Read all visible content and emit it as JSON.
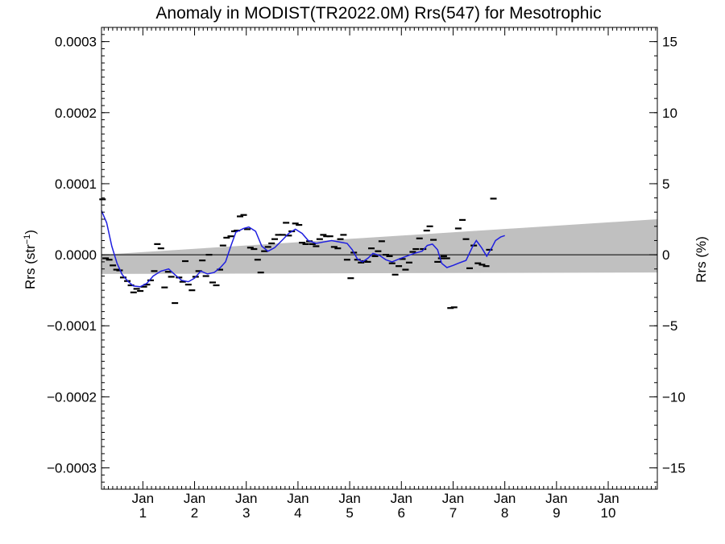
{
  "chart_data": {
    "type": "scatter",
    "title": "Anomaly in MODIST(TR2022.0M) Rrs(547) for Mesotrophic",
    "ylabel_left_base": "Rrs (str",
    "ylabel_left_sup": "−1",
    "ylabel_left_close": ")",
    "ylabel_right": "Rrs (%)",
    "xlim": [
      0.2,
      10.95
    ],
    "ylim_left": [
      -0.00033,
      0.00032
    ],
    "ylim_right": [
      -16.5,
      16.0
    ],
    "grid": false,
    "left_ticks": [
      {
        "value": 0.0003,
        "label": "0.0003"
      },
      {
        "value": 0.0002,
        "label": "0.0002"
      },
      {
        "value": 0.0001,
        "label": "0.0001"
      },
      {
        "value": 0.0,
        "label": "0.0000"
      },
      {
        "value": -0.0001,
        "label": "−0.0001"
      },
      {
        "value": -0.0002,
        "label": "−0.0002"
      },
      {
        "value": -0.0003,
        "label": "−0.0003"
      }
    ],
    "right_ticks": [
      {
        "value": 15,
        "label": "15"
      },
      {
        "value": 10,
        "label": "10"
      },
      {
        "value": 5,
        "label": "5"
      },
      {
        "value": 0,
        "label": "0"
      },
      {
        "value": -5,
        "label": "−5"
      },
      {
        "value": -10,
        "label": "−10"
      },
      {
        "value": -15,
        "label": "−15"
      }
    ],
    "x_ticks": [
      {
        "value": 1,
        "month": "Jan",
        "year": "1"
      },
      {
        "value": 2,
        "month": "Jan",
        "year": "2"
      },
      {
        "value": 3,
        "month": "Jan",
        "year": "3"
      },
      {
        "value": 4,
        "month": "Jan",
        "year": "4"
      },
      {
        "value": 5,
        "month": "Jan",
        "year": "5"
      },
      {
        "value": 6,
        "month": "Jan",
        "year": "6"
      },
      {
        "value": 7,
        "month": "Jan",
        "year": "7"
      },
      {
        "value": 8,
        "month": "Jan",
        "year": "8"
      },
      {
        "value": 9,
        "month": "Jan",
        "year": "9"
      },
      {
        "value": 10,
        "month": "Jan",
        "year": "10"
      }
    ],
    "band": {
      "color": "#c0c0c0",
      "upper": [
        [
          0.2,
          0.0
        ],
        [
          10.95,
          5e-05
        ]
      ],
      "lower": [
        [
          0.2,
          -2.7e-05
        ],
        [
          10.95,
          -2.5e-05
        ]
      ]
    },
    "zero_line": 0,
    "points": [
      [
        0.22,
        7.8e-05
      ],
      [
        0.28,
        -5e-06
      ],
      [
        0.35,
        -7e-06
      ],
      [
        0.42,
        -1.5e-05
      ],
      [
        0.49,
        -2.1e-05
      ],
      [
        0.55,
        -2.2e-05
      ],
      [
        0.62,
        -3.2e-05
      ],
      [
        0.7,
        -3.7e-05
      ],
      [
        0.77,
        -4.3e-05
      ],
      [
        0.82,
        -5.3e-05
      ],
      [
        0.88,
        -4.8e-05
      ],
      [
        0.95,
        -5.1e-05
      ],
      [
        1.02,
        -4.5e-05
      ],
      [
        1.08,
        -4.2e-05
      ],
      [
        1.15,
        -3.6e-05
      ],
      [
        1.22,
        -2.3e-05
      ],
      [
        1.28,
        1.5e-05
      ],
      [
        1.35,
        9e-06
      ],
      [
        1.42,
        -4.6e-05
      ],
      [
        1.49,
        -2.4e-05
      ],
      [
        1.55,
        -3.1e-05
      ],
      [
        1.62,
        -6.8e-05
      ],
      [
        1.7,
        -3.2e-05
      ],
      [
        1.77,
        -3.8e-05
      ],
      [
        1.82,
        -9e-06
      ],
      [
        1.88,
        -4.2e-05
      ],
      [
        1.95,
        -5e-05
      ],
      [
        2.02,
        -3.1e-05
      ],
      [
        2.08,
        -2.3e-05
      ],
      [
        2.15,
        -8e-06
      ],
      [
        2.22,
        -3e-05
      ],
      [
        2.28,
        0.0
      ],
      [
        2.35,
        -3.9e-05
      ],
      [
        2.42,
        -4.3e-05
      ],
      [
        2.49,
        -2.1e-05
      ],
      [
        2.55,
        1.3e-05
      ],
      [
        2.62,
        2.4e-05
      ],
      [
        2.7,
        2.6e-05
      ],
      [
        2.77,
        3.3e-05
      ],
      [
        2.82,
        3.4e-05
      ],
      [
        2.88,
        5.4e-05
      ],
      [
        2.95,
        5.6e-05
      ],
      [
        3.02,
        3.6e-05
      ],
      [
        3.08,
        1e-05
      ],
      [
        3.15,
        8e-06
      ],
      [
        3.22,
        -7e-06
      ],
      [
        3.28,
        -2.5e-05
      ],
      [
        3.35,
        5e-06
      ],
      [
        3.42,
        1.1e-05
      ],
      [
        3.49,
        1.6e-05
      ],
      [
        3.55,
        2.2e-05
      ],
      [
        3.62,
        2.8e-05
      ],
      [
        3.7,
        2.8e-05
      ],
      [
        3.77,
        4.5e-05
      ],
      [
        3.82,
        2.7e-05
      ],
      [
        3.88,
        3.3e-05
      ],
      [
        3.95,
        4.4e-05
      ],
      [
        4.02,
        4.2e-05
      ],
      [
        4.08,
        1.7e-05
      ],
      [
        4.15,
        1.5e-05
      ],
      [
        4.22,
        1.9e-05
      ],
      [
        4.28,
        1.5e-05
      ],
      [
        4.35,
        1.2e-05
      ],
      [
        4.42,
        2.2e-05
      ],
      [
        4.49,
        2.8e-05
      ],
      [
        4.55,
        2.6e-05
      ],
      [
        4.62,
        2.6e-05
      ],
      [
        4.7,
        1.1e-05
      ],
      [
        4.77,
        9e-06
      ],
      [
        4.82,
        2.2e-05
      ],
      [
        4.88,
        2.8e-05
      ],
      [
        4.95,
        -7e-06
      ],
      [
        5.02,
        -3.3e-05
      ],
      [
        5.08,
        3e-06
      ],
      [
        5.15,
        -7e-06
      ],
      [
        5.22,
        -1.1e-05
      ],
      [
        5.28,
        -9e-06
      ],
      [
        5.35,
        -1e-05
      ],
      [
        5.42,
        9e-06
      ],
      [
        5.49,
        -2e-06
      ],
      [
        5.55,
        5e-06
      ],
      [
        5.62,
        1.9e-05
      ],
      [
        5.7,
        0.0
      ],
      [
        5.77,
        -2e-06
      ],
      [
        5.82,
        -1.2e-05
      ],
      [
        5.88,
        -2.8e-05
      ],
      [
        5.95,
        -1.6e-05
      ],
      [
        6.02,
        -6e-06
      ],
      [
        6.08,
        -2.1e-05
      ],
      [
        6.15,
        -1.1e-05
      ],
      [
        6.22,
        4e-06
      ],
      [
        6.28,
        8e-06
      ],
      [
        6.35,
        2.3e-05
      ],
      [
        6.42,
        8e-06
      ],
      [
        6.49,
        3.4e-05
      ],
      [
        6.55,
        4e-05
      ],
      [
        6.62,
        2.1e-05
      ],
      [
        6.7,
        -1e-05
      ],
      [
        6.77,
        -5e-06
      ],
      [
        6.82,
        -2e-06
      ],
      [
        6.88,
        -5e-06
      ],
      [
        6.95,
        -7.5e-05
      ],
      [
        7.02,
        -7.4e-05
      ],
      [
        7.1,
        3.7e-05
      ],
      [
        7.18,
        4.9e-05
      ],
      [
        7.25,
        2.2e-05
      ],
      [
        7.32,
        -1.9e-05
      ],
      [
        7.4,
        1.3e-05
      ],
      [
        7.48,
        -1.2e-05
      ],
      [
        7.56,
        -1.4e-05
      ],
      [
        7.64,
        -1.6e-05
      ],
      [
        7.7,
        7e-06
      ],
      [
        7.78,
        7.9e-05
      ]
    ],
    "smooth_line": [
      [
        0.2,
        6.2e-05
      ],
      [
        0.3,
        4.5e-05
      ],
      [
        0.4,
        1.2e-05
      ],
      [
        0.5,
        -1.2e-05
      ],
      [
        0.6,
        -2.8e-05
      ],
      [
        0.72,
        -3.8e-05
      ],
      [
        0.82,
        -4.4e-05
      ],
      [
        0.95,
        -4.5e-05
      ],
      [
        1.08,
        -4e-05
      ],
      [
        1.2,
        -3e-05
      ],
      [
        1.35,
        -2.3e-05
      ],
      [
        1.5,
        -2e-05
      ],
      [
        1.62,
        -2.8e-05
      ],
      [
        1.75,
        -3.6e-05
      ],
      [
        1.88,
        -3.8e-05
      ],
      [
        2.0,
        -3.3e-05
      ],
      [
        2.12,
        -2.3e-05
      ],
      [
        2.25,
        -2.7e-05
      ],
      [
        2.38,
        -2.5e-05
      ],
      [
        2.5,
        -1.8e-05
      ],
      [
        2.6,
        -1e-05
      ],
      [
        2.7,
        1.2e-05
      ],
      [
        2.8,
        3.2e-05
      ],
      [
        2.95,
        3.7e-05
      ],
      [
        3.05,
        3.9e-05
      ],
      [
        3.18,
        3.3e-05
      ],
      [
        3.3,
        1.2e-05
      ],
      [
        3.42,
        5e-06
      ],
      [
        3.55,
        1e-05
      ],
      [
        3.7,
        2.1e-05
      ],
      [
        3.82,
        3e-05
      ],
      [
        3.95,
        3.6e-05
      ],
      [
        4.08,
        3e-05
      ],
      [
        4.2,
        2e-05
      ],
      [
        4.35,
        1.6e-05
      ],
      [
        4.5,
        1.8e-05
      ],
      [
        4.65,
        2e-05
      ],
      [
        4.8,
        1.8e-05
      ],
      [
        4.95,
        1.6e-05
      ],
      [
        5.05,
        7e-06
      ],
      [
        5.15,
        -6e-06
      ],
      [
        5.25,
        -1e-05
      ],
      [
        5.35,
        -5e-06
      ],
      [
        5.45,
        2e-06
      ],
      [
        5.58,
        -1e-06
      ],
      [
        5.7,
        -7e-06
      ],
      [
        5.82,
        -1e-05
      ],
      [
        5.95,
        -6e-06
      ],
      [
        6.1,
        -2e-06
      ],
      [
        6.25,
        2e-06
      ],
      [
        6.4,
        5e-06
      ],
      [
        6.5,
        1.3e-05
      ],
      [
        6.6,
        1.5e-05
      ],
      [
        6.7,
        7e-06
      ],
      [
        6.78,
        -1.2e-05
      ],
      [
        6.88,
        -1.8e-05
      ],
      [
        7.0,
        -1.5e-05
      ],
      [
        7.1,
        -1.2e-05
      ],
      [
        7.25,
        -8e-06
      ],
      [
        7.38,
        1.2e-05
      ],
      [
        7.45,
        2e-05
      ],
      [
        7.55,
        1e-05
      ],
      [
        7.65,
        -2e-06
      ],
      [
        7.75,
        1e-05
      ],
      [
        7.82,
        2e-05
      ],
      [
        7.92,
        2.5e-05
      ],
      [
        8.0,
        2.7e-05
      ]
    ],
    "line_color": "#1f1fe0",
    "marker_color": "#000000"
  }
}
